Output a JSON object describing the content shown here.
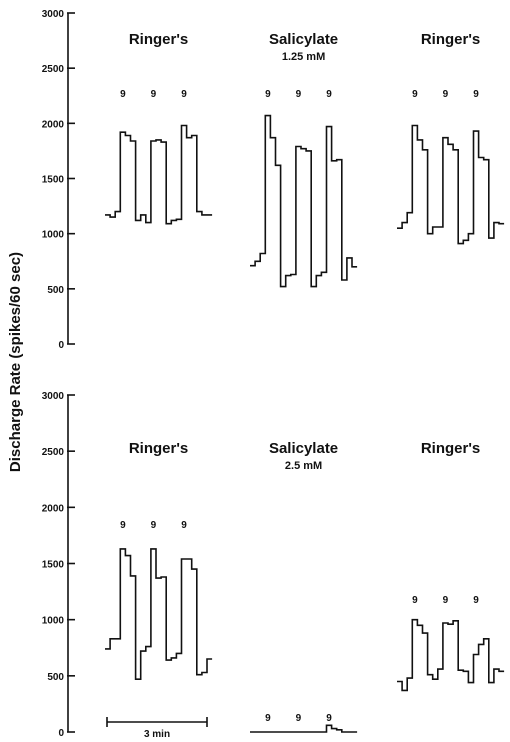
{
  "chart_data": {
    "type": "line",
    "ylabel": "Discharge Rate (spikes/60 sec)",
    "scale_bar_label": "3 min",
    "panels": [
      {
        "ylim": [
          0,
          3000
        ],
        "yticks": [
          "0",
          "500",
          "1000",
          "1500",
          "2000",
          "2500",
          "3000"
        ],
        "conditions": [
          {
            "label": "Ringer's",
            "dose": "",
            "stim_marks": [
              "9",
              "9",
              "9"
            ],
            "series": {
              "name": "",
              "values": [
                1170,
                1150,
                1200,
                1920,
                1890,
                1840,
                1120,
                1170,
                1100,
                1840,
                1850,
                1830,
                1090,
                1120,
                1130,
                1980,
                1870,
                1890,
                1200,
                1170,
                1170
              ]
            }
          },
          {
            "label": "Salicylate",
            "dose": "1.25 mM",
            "stim_marks": [
              "9",
              "9",
              "9"
            ],
            "series": {
              "name": "",
              "values": [
                710,
                750,
                820,
                2070,
                1870,
                1620,
                520,
                620,
                630,
                1790,
                1770,
                1750,
                520,
                620,
                650,
                1970,
                1660,
                1670,
                580,
                780,
                700
              ]
            }
          },
          {
            "label": "Ringer's",
            "dose": "",
            "stim_marks": [
              "9",
              "9",
              "9"
            ],
            "series": {
              "name": "",
              "values": [
                1050,
                1100,
                1190,
                1980,
                1850,
                1760,
                1000,
                1060,
                1060,
                1870,
                1810,
                1760,
                910,
                940,
                1000,
                1930,
                1690,
                1670,
                960,
                1100,
                1090
              ]
            }
          }
        ]
      },
      {
        "ylim": [
          0,
          3000
        ],
        "yticks": [
          "0",
          "500",
          "1000",
          "1500",
          "2000",
          "2500",
          "3000"
        ],
        "conditions": [
          {
            "label": "Ringer's",
            "dose": "",
            "stim_marks": [
              "9",
              "9",
              "9"
            ],
            "series": {
              "name": "",
              "values": [
                740,
                830,
                830,
                1630,
                1570,
                1390,
                470,
                720,
                760,
                1630,
                1370,
                1380,
                640,
                660,
                700,
                1540,
                1540,
                1450,
                510,
                530,
                650
              ]
            }
          },
          {
            "label": "Salicylate",
            "dose": "2.5 mM",
            "stim_marks": [
              "9",
              "9",
              "9"
            ],
            "series": {
              "name": "",
              "values": [
                0,
                0,
                0,
                0,
                0,
                0,
                0,
                0,
                0,
                0,
                0,
                0,
                0,
                0,
                0,
                60,
                30,
                20,
                0,
                0,
                0
              ]
            }
          },
          {
            "label": "Ringer's",
            "dose": "",
            "stim_marks": [
              "9",
              "9",
              "9"
            ],
            "series": {
              "name": "",
              "values": [
                450,
                370,
                480,
                1000,
                950,
                880,
                510,
                470,
                560,
                970,
                960,
                990,
                550,
                540,
                440,
                690,
                780,
                830,
                440,
                560,
                540
              ]
            }
          }
        ]
      }
    ]
  }
}
